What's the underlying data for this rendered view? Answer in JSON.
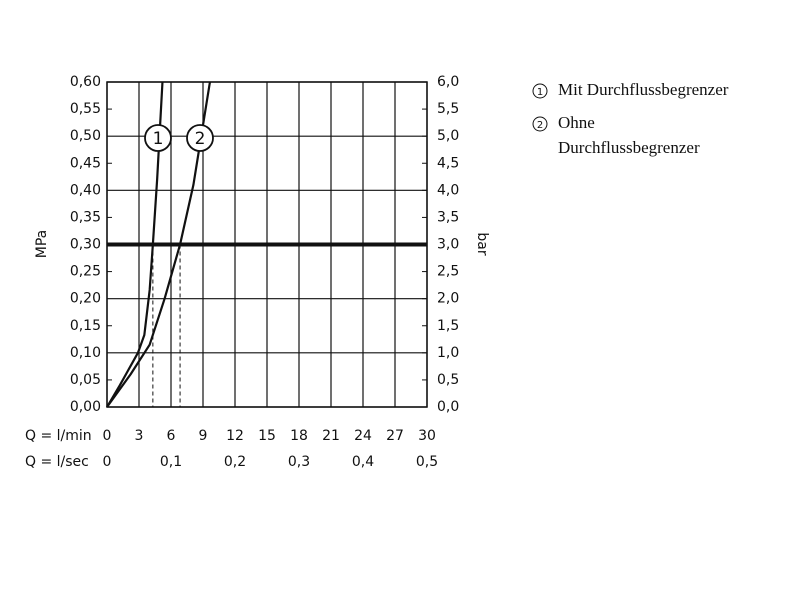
{
  "chart_data": {
    "type": "line",
    "xlabel": "Q = l/min",
    "x2label": "Q = l/sec",
    "ylabel": "MPa",
    "y2label": "bar",
    "xlim": [
      0,
      30
    ],
    "xticks": [
      0,
      3,
      6,
      9,
      12,
      15,
      18,
      21,
      24,
      27,
      30
    ],
    "x2lim": [
      0,
      0.5
    ],
    "x2ticks": [
      0,
      {
        "value": 0.1,
        "label": "0,1"
      },
      {
        "value": 0.2,
        "label": "0,2"
      },
      {
        "value": 0.3,
        "label": "0,3"
      },
      {
        "value": 0.4,
        "label": "0,4"
      },
      {
        "value": 0.5,
        "label": "0,5"
      }
    ],
    "ylim": [
      0,
      0.6
    ],
    "yticks": [
      {
        "value": 0,
        "label": "0,00"
      },
      {
        "value": 0.05,
        "label": "0,05"
      },
      {
        "value": 0.1,
        "label": "0,10"
      },
      {
        "value": 0.15,
        "label": "0,15"
      },
      {
        "value": 0.2,
        "label": "0,20"
      },
      {
        "value": 0.25,
        "label": "0,25"
      },
      {
        "value": 0.3,
        "label": "0,30"
      },
      {
        "value": 0.35,
        "label": "0,35"
      },
      {
        "value": 0.4,
        "label": "0,40"
      },
      {
        "value": 0.45,
        "label": "0,45"
      },
      {
        "value": 0.5,
        "label": "0,50"
      },
      {
        "value": 0.55,
        "label": "0,55"
      },
      {
        "value": 0.6,
        "label": "0,60"
      }
    ],
    "y2lim": [
      0,
      6
    ],
    "y2ticks": [
      {
        "value": 0,
        "label": "0,0"
      },
      {
        "value": 0.5,
        "label": "0,5"
      },
      {
        "value": 1,
        "label": "1,0"
      },
      {
        "value": 1.5,
        "label": "1,5"
      },
      {
        "value": 2,
        "label": "2,0"
      },
      {
        "value": 2.5,
        "label": "2,5"
      },
      {
        "value": 3,
        "label": "3,0"
      },
      {
        "value": 3.5,
        "label": "3,5"
      },
      {
        "value": 4,
        "label": "4,0"
      },
      {
        "value": 4.5,
        "label": "4,5"
      },
      {
        "value": 5,
        "label": "5,0"
      },
      {
        "value": 5.5,
        "label": "5,5"
      },
      {
        "value": 6,
        "label": "6,0"
      }
    ],
    "reference_y": 0.3,
    "series": [
      {
        "name": "Mit Durchflussbegrenzer",
        "label": "1",
        "color": "#111",
        "crossing_x": 4.3,
        "x": [
          0,
          1.2,
          2.9,
          3.5,
          4.0,
          4.3,
          4.7,
          5.2
        ],
        "values": [
          0,
          0.04,
          0.1,
          0.133,
          0.216,
          0.3,
          0.42,
          0.6
        ]
      },
      {
        "name": "Ohne Durchflussbegrenzer",
        "label": "2",
        "color": "#111",
        "crossing_x": 6.85,
        "x": [
          0,
          2.2,
          4.0,
          5.4,
          6.85,
          8.1,
          9.65
        ],
        "values": [
          0,
          0.06,
          0.115,
          0.2,
          0.3,
          0.41,
          0.6
        ]
      }
    ]
  }
}
